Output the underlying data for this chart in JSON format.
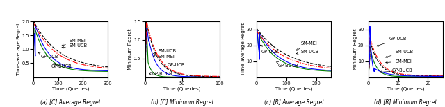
{
  "colors": {
    "SM-MEI": "#000000",
    "SM-UCB": "#FF0000",
    "GP-UCB": "#0000FF",
    "GP-BUCB": "#008000"
  },
  "panel_a": {
    "xlim": [
      0,
      300
    ],
    "ylim": [
      0,
      2
    ],
    "xticks": [
      0,
      100,
      200,
      300
    ],
    "yticks": [
      0.5,
      1.0,
      1.5,
      2.0
    ],
    "xlabel": "Time (Queries)",
    "ylabel": "Time-average Regret",
    "caption": "(a) [C] Average Regret"
  },
  "panel_b": {
    "xlim": [
      0,
      100
    ],
    "ylim": [
      0,
      1.5
    ],
    "xticks": [
      0,
      50,
      100
    ],
    "yticks": [
      0.5,
      1.0,
      1.5
    ],
    "xlabel": "Time (Queries)",
    "ylabel": "Minimum Regret",
    "caption": "(b) [C] Minimum Regret"
  },
  "panel_c": {
    "xlim": [
      0,
      250
    ],
    "ylim": [
      0,
      35
    ],
    "xticks": [
      0,
      100,
      200
    ],
    "yticks": [
      10,
      20,
      30
    ],
    "xlabel": "Time (Queries)",
    "ylabel": "Time-average Regret",
    "caption": "(c) [R] Average Regret"
  },
  "panel_d": {
    "xlim": [
      0,
      25
    ],
    "ylim": [
      0,
      35
    ],
    "xticks": [
      0,
      10,
      20
    ],
    "yticks": [
      10,
      20,
      30
    ],
    "xlabel": "Time (Queries)",
    "ylabel": "Minimum Regret",
    "caption": "(d) [R] Minimum Regret"
  }
}
